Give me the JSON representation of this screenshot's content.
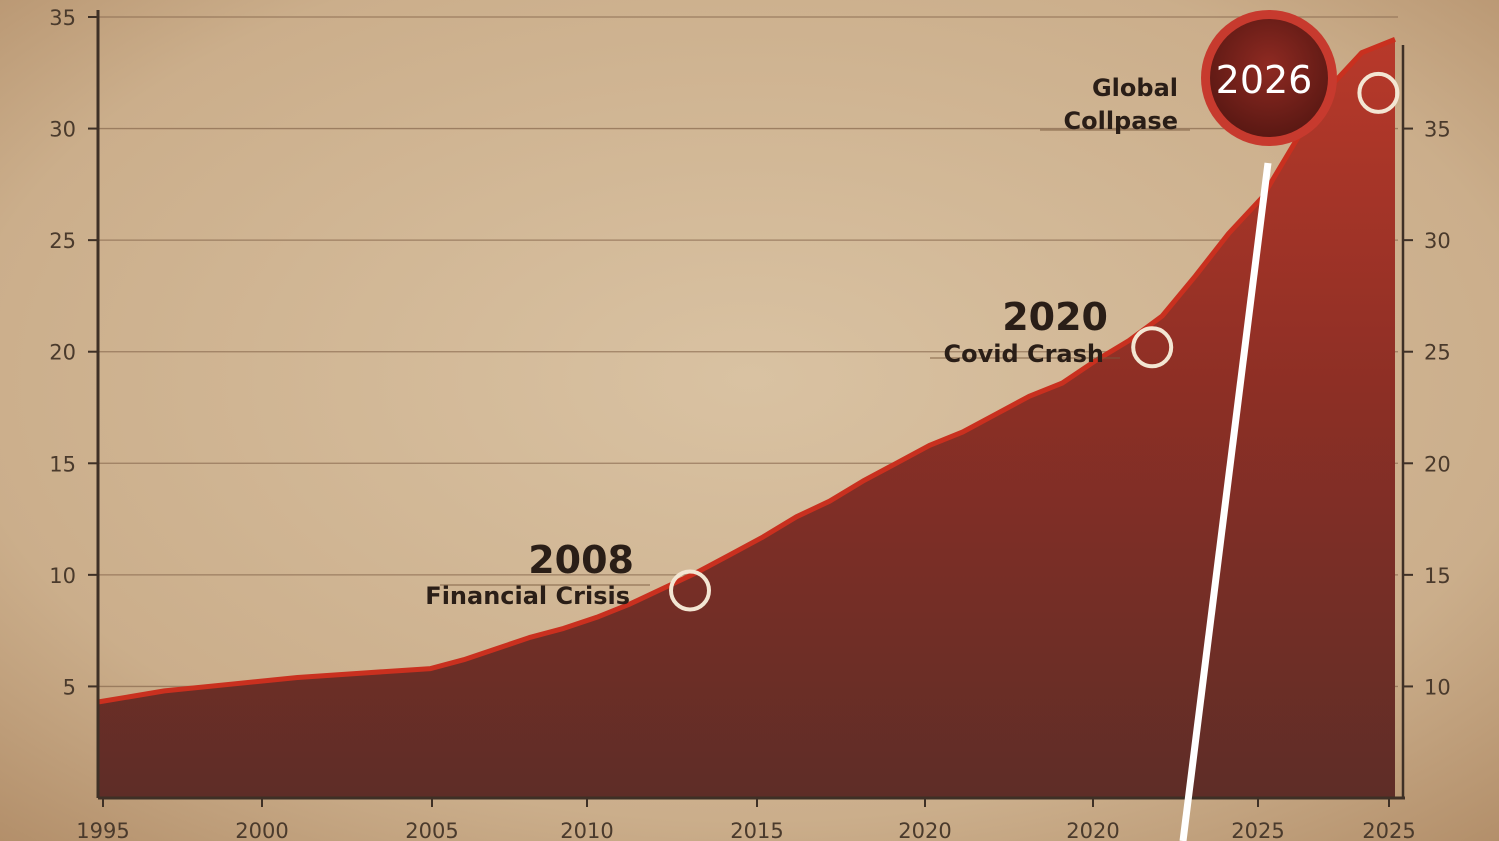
{
  "chart_data": {
    "type": "area",
    "title": "",
    "xlabel": "",
    "ylabel": "",
    "x_tick_labels": [
      "1995",
      "2000",
      "2005",
      "2010",
      "2015",
      "2020",
      "2020",
      "2025",
      "2025"
    ],
    "y_left_ticks": [
      "35",
      "30",
      "25",
      "20",
      "15",
      "10",
      "5"
    ],
    "y_right_ticks": [
      "35",
      "30",
      "25",
      "20",
      "15",
      "10"
    ],
    "ylim": [
      0,
      35
    ],
    "grid": true,
    "series": [
      {
        "color": "#c9301f",
        "x": [
          1995,
          1997,
          1999,
          2001,
          2003,
          2005,
          2006,
          2007,
          2008,
          2009,
          2010,
          2011,
          2012,
          2013,
          2014,
          2015,
          2016,
          2017,
          2018,
          2019,
          2020,
          2021,
          2022,
          2023,
          2024,
          2025,
          2026,
          2027,
          2028,
          2029,
          2030,
          2031,
          2032,
          2033,
          2034
        ],
        "values": [
          4.3,
          4.8,
          5.1,
          5.4,
          5.6,
          5.8,
          6.2,
          6.7,
          7.2,
          7.6,
          8.1,
          8.7,
          9.4,
          10.1,
          10.9,
          11.7,
          12.6,
          13.3,
          14.2,
          15.0,
          15.8,
          16.4,
          17.2,
          18.0,
          18.6,
          19.6,
          20.5,
          21.6,
          23.4,
          25.3,
          26.9,
          29.4,
          31.8,
          33.4,
          34.0
        ]
      }
    ],
    "annotations": [
      {
        "year": "2008",
        "label": "Financial Crisis",
        "x": 2012.8,
        "y": 9.3
      },
      {
        "year": "2020",
        "label": "Covid Crash",
        "x": 2026.7,
        "y": 20.2
      },
      {
        "year": "2026",
        "label": "Global Collpase",
        "x": 2033.5,
        "y": 31.6
      }
    ]
  }
}
